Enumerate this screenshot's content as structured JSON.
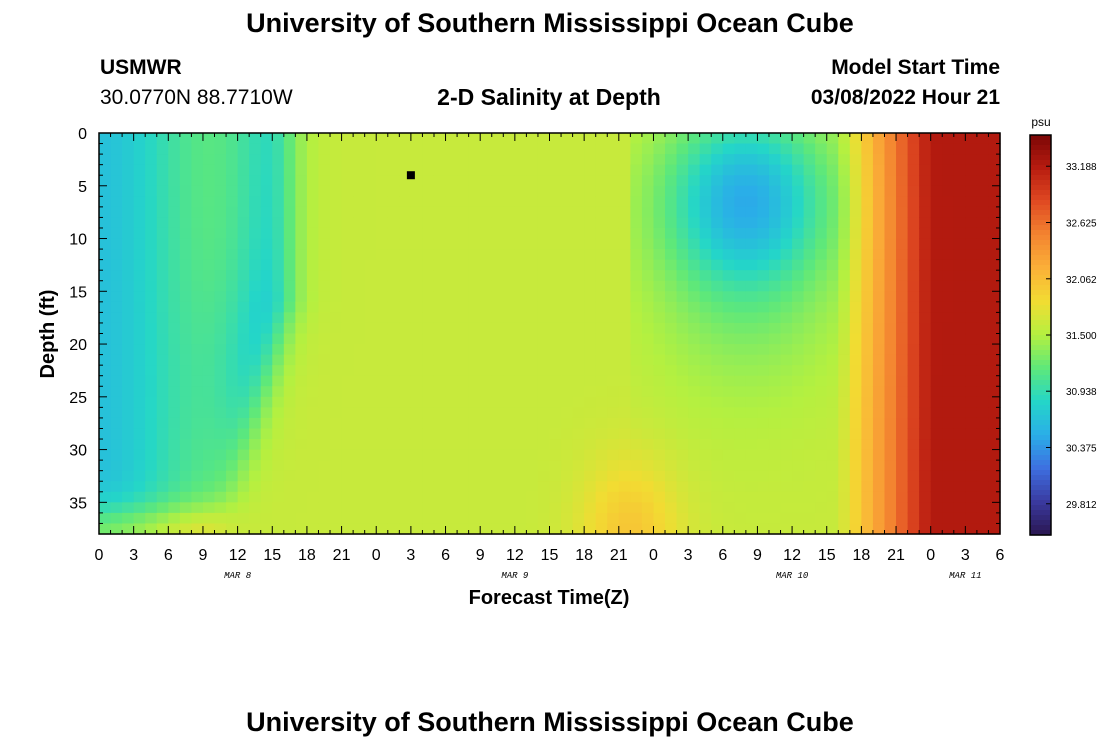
{
  "page": {
    "title": "University of Southern Mississippi Ocean Cube",
    "title_repeat": "University of Southern Mississippi Ocean Cube"
  },
  "header": {
    "station": "USMWR",
    "coords": "30.0770N  88.7710W",
    "subtitle": "2-D Salinity at Depth",
    "model_start_label": "Model Start Time",
    "model_start_value": "03/08/2022 Hour 21"
  },
  "chart_data": {
    "type": "heatmap",
    "title": "2-D Salinity at Depth",
    "xlabel": "Forecast Time(Z)",
    "ylabel": "Depth (ft)",
    "x_tick_labels": [
      "0",
      "3",
      "6",
      "9",
      "12",
      "15",
      "18",
      "21",
      "0",
      "3",
      "6",
      "9",
      "12",
      "15",
      "18",
      "21",
      "0",
      "3",
      "6",
      "9",
      "12",
      "15",
      "18",
      "21",
      "0",
      "3",
      "6"
    ],
    "x_date_labels": [
      "MAR 8",
      "MAR 9",
      "MAR 10",
      "MAR 11"
    ],
    "x_range_hours": [
      0,
      78
    ],
    "y_ticks": [
      0,
      5,
      10,
      15,
      20,
      25,
      30,
      35
    ],
    "ylim": [
      38,
      0
    ],
    "colorbar": {
      "unit": "psu",
      "ticks": [
        "33.188",
        "32.625",
        "32.062",
        "31.500",
        "30.938",
        "30.375",
        "29.812"
      ],
      "range": [
        29.5,
        33.5
      ],
      "colors": [
        "#2a1650",
        "#3a3aa0",
        "#3d6fe0",
        "#2aaee8",
        "#24d6c8",
        "#5ee87a",
        "#b4f040",
        "#f2dc32",
        "#fbb038",
        "#f38430",
        "#e04a22",
        "#b81c10",
        "#7a0606"
      ]
    },
    "station_marker": {
      "x_hour": 27,
      "depth_ft": 4
    },
    "grid": false
  }
}
